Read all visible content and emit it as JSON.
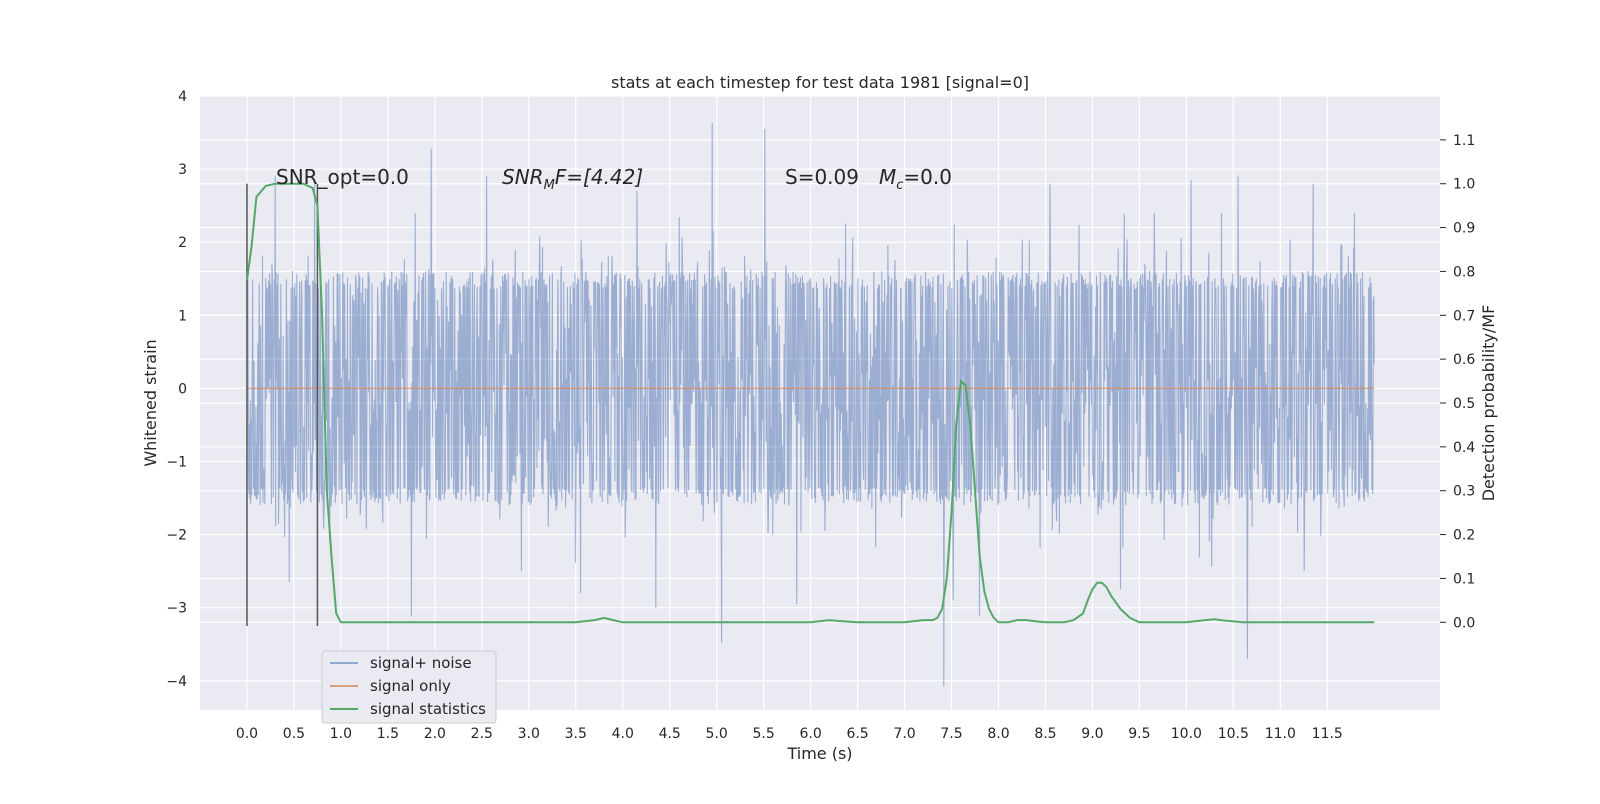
{
  "chart_data": {
    "type": "line",
    "title": "stats at each timestep for test data 1981 [signal=0]",
    "xlabel": "Time (s)",
    "ylabel": "Whitened strain",
    "y2label": "Detection probability/MF",
    "xlim": [
      -0.5,
      12.7
    ],
    "ylim": [
      -4.4,
      4.0
    ],
    "y2lim": [
      -0.2,
      1.2
    ],
    "grid": true,
    "legend_position": "lower-left",
    "x_ticks": [
      "0.0",
      "0.5",
      "1.0",
      "1.5",
      "2.0",
      "2.5",
      "3.0",
      "3.5",
      "4.0",
      "4.5",
      "5.0",
      "5.5",
      "6.0",
      "6.5",
      "7.0",
      "7.5",
      "8.0",
      "8.5",
      "9.0",
      "9.5",
      "10.0",
      "10.5",
      "11.0",
      "11.5"
    ],
    "x_tick_values": [
      0,
      0.5,
      1,
      1.5,
      2,
      2.5,
      3,
      3.5,
      4,
      4.5,
      5,
      5.5,
      6,
      6.5,
      7,
      7.5,
      8,
      8.5,
      9,
      9.5,
      10,
      10.5,
      11,
      11.5
    ],
    "y_ticks": [
      "−4",
      "−3",
      "−2",
      "−1",
      "0",
      "1",
      "2",
      "3",
      "4"
    ],
    "y_tick_values": [
      -4,
      -3,
      -2,
      -1,
      0,
      1,
      2,
      3,
      4
    ],
    "y2_ticks": [
      "0.0",
      "0.1",
      "0.2",
      "0.3",
      "0.4",
      "0.5",
      "0.6",
      "0.7",
      "0.8",
      "0.9",
      "1.0",
      "1.1"
    ],
    "y2_tick_values": [
      0,
      0.1,
      0.2,
      0.3,
      0.4,
      0.5,
      0.6,
      0.7,
      0.8,
      0.9,
      1.0,
      1.1
    ],
    "annotations": {
      "snr_opt": "SNR_opt=0.0",
      "snr_mf_main": "SNR",
      "snr_mf_sub": "M",
      "snr_mf_rest": "F=[4.42]",
      "s_value": "S=0.09",
      "mc_main": "M",
      "mc_sub": "c",
      "mc_rest": "=0.0"
    },
    "vlines": [
      {
        "x": 0.0,
        "ymin": -3.25,
        "ymax": 2.8
      },
      {
        "x": 0.75,
        "ymin": -3.25,
        "ymax": 2.8
      }
    ],
    "series": [
      {
        "name": "signal+ noise",
        "color": "#4c72b0",
        "type": "noise",
        "t_range": [
          0.0,
          12.0
        ],
        "samples": 2400,
        "core_amplitude": 1.6,
        "spikes": [
          [
            0.3,
            2.9
          ],
          [
            0.72,
            2.85
          ],
          [
            1.96,
            3.28
          ],
          [
            2.55,
            2.9
          ],
          [
            4.15,
            2.7
          ],
          [
            4.95,
            3.63
          ],
          [
            5.51,
            3.55
          ],
          [
            8.55,
            2.8
          ],
          [
            10.05,
            2.85
          ],
          [
            10.55,
            2.9
          ],
          [
            11.35,
            2.8
          ],
          [
            0.45,
            -2.65
          ],
          [
            1.75,
            -3.12
          ],
          [
            4.35,
            -3.0
          ],
          [
            5.05,
            -3.48
          ],
          [
            5.85,
            -2.95
          ],
          [
            7.42,
            -4.08
          ],
          [
            7.52,
            -2.9
          ],
          [
            7.8,
            -3.12
          ],
          [
            10.65,
            -3.7
          ],
          [
            3.55,
            -2.8
          ],
          [
            9.3,
            -2.75
          ]
        ]
      },
      {
        "name": "signal only",
        "color": "#dd8452",
        "type": "flat",
        "t_range": [
          0.0,
          12.0
        ],
        "value": 0.0
      },
      {
        "name": "signal statistics",
        "color": "#55a868",
        "type": "line",
        "axis": "right",
        "x": [
          0.0,
          0.05,
          0.1,
          0.2,
          0.3,
          0.4,
          0.5,
          0.6,
          0.65,
          0.7,
          0.75,
          0.8,
          0.85,
          0.9,
          0.95,
          1.0,
          1.1,
          2.0,
          3.0,
          3.5,
          3.7,
          3.8,
          3.9,
          4.0,
          4.5,
          5.0,
          6.0,
          6.2,
          6.3,
          6.5,
          7.0,
          7.2,
          7.3,
          7.35,
          7.4,
          7.45,
          7.5,
          7.55,
          7.6,
          7.65,
          7.7,
          7.75,
          7.8,
          7.85,
          7.9,
          7.95,
          8.0,
          8.1,
          8.2,
          8.3,
          8.4,
          8.5,
          8.6,
          8.7,
          8.8,
          8.9,
          8.95,
          9.0,
          9.05,
          9.1,
          9.15,
          9.2,
          9.3,
          9.4,
          9.5,
          9.6,
          10.0,
          10.2,
          10.3,
          10.4,
          10.6,
          11.0,
          12.0
        ],
        "y": [
          0.78,
          0.86,
          0.97,
          0.995,
          1.0,
          1.0,
          1.0,
          1.0,
          0.995,
          0.99,
          0.95,
          0.7,
          0.3,
          0.15,
          0.02,
          0.0,
          0.0,
          0.0,
          0.0,
          0.0,
          0.005,
          0.01,
          0.005,
          0.0,
          0.0,
          0.0,
          0.0,
          0.005,
          0.003,
          0.0,
          0.0,
          0.005,
          0.005,
          0.01,
          0.03,
          0.1,
          0.25,
          0.45,
          0.55,
          0.54,
          0.45,
          0.3,
          0.15,
          0.07,
          0.03,
          0.01,
          0.0,
          0.0,
          0.005,
          0.005,
          0.002,
          0.0,
          0.0,
          0.0,
          0.005,
          0.02,
          0.05,
          0.075,
          0.09,
          0.09,
          0.08,
          0.06,
          0.03,
          0.01,
          0.0,
          0.0,
          0.0,
          0.005,
          0.007,
          0.004,
          0.0,
          0.0,
          0.0
        ]
      }
    ]
  }
}
